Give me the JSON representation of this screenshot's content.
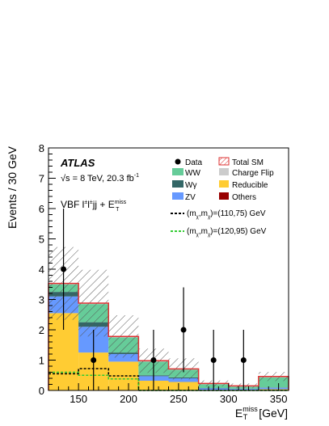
{
  "chart_data": {
    "type": "bar",
    "stacked": true,
    "xlabel_main": "E",
    "xlabel_sup": "miss",
    "xlabel_sub": "T",
    "xlabel_unit": "[GeV]",
    "ylabel": "Events / 30 GeV",
    "xlim": [
      120,
      360
    ],
    "ylim": [
      0,
      8
    ],
    "x_ticks": [
      150,
      200,
      250,
      300,
      350
    ],
    "y_ticks": [
      0,
      1,
      2,
      3,
      4,
      5,
      6,
      7,
      8
    ],
    "bins": [
      [
        120,
        150
      ],
      [
        150,
        180
      ],
      [
        180,
        210
      ],
      [
        210,
        240
      ],
      [
        240,
        270
      ],
      [
        270,
        300
      ],
      [
        300,
        330
      ],
      [
        330,
        360
      ]
    ],
    "series": [
      {
        "name": "Reducible",
        "color": "#ffcc33",
        "values": [
          2.55,
          1.25,
          0.95,
          0.32,
          0.28,
          0.02,
          0.02,
          0.04
        ]
      },
      {
        "name": "ZV",
        "color": "#6699ff",
        "values": [
          0.55,
          0.85,
          0.25,
          0.15,
          0.12,
          0.05,
          0.03,
          0.05
        ]
      },
      {
        "name": "Wγ",
        "color": "#336666",
        "values": [
          0.15,
          0.15,
          0.05,
          0.03,
          0.03,
          0.01,
          0.01,
          0.01
        ]
      },
      {
        "name": "WW",
        "color": "#66cc99",
        "values": [
          0.25,
          0.6,
          0.5,
          0.45,
          0.25,
          0.12,
          0.06,
          0.33
        ]
      },
      {
        "name": "Charge Flip",
        "color": "#cccccc",
        "values": [
          0.02,
          0.02,
          0.02,
          0.02,
          0.02,
          0.02,
          0.02,
          0.02
        ]
      },
      {
        "name": "Others",
        "color": "#990000",
        "values": [
          0.01,
          0.01,
          0.01,
          0.01,
          0.01,
          0.01,
          0.01,
          0.01
        ]
      }
    ],
    "total_sm": {
      "name": "Total SM",
      "color": "#dd3333",
      "values": [
        3.53,
        2.88,
        1.78,
        0.98,
        0.71,
        0.23,
        0.15,
        0.46
      ],
      "uncertainty": [
        1.2,
        1.1,
        0.7,
        0.4,
        0.35,
        0.1,
        0.08,
        0.15
      ]
    },
    "data": {
      "name": "Data",
      "x": [
        135,
        165,
        225,
        255,
        285,
        315
      ],
      "values": [
        4,
        1,
        1,
        2,
        1,
        1
      ],
      "err_low": [
        2,
        1,
        1,
        1.4,
        1,
        1
      ],
      "err_high": [
        2,
        1,
        1,
        1.4,
        1,
        1
      ]
    },
    "signals": [
      {
        "name": "(110,75) GeV",
        "color": "#000000",
        "values": [
          0.55,
          0.72,
          0.48,
          0.0,
          0.0,
          0.0,
          0.0,
          0.0
        ]
      },
      {
        "name": "(120,95) GeV",
        "color": "#33cc33",
        "values": [
          0.6,
          0.5,
          0.38,
          0.0,
          0.0,
          0.0,
          0.0,
          0.0
        ]
      }
    ],
    "legend_placement": "top-right"
  },
  "labels": {
    "atlas": "ATLAS",
    "energy_prefix": "√s = 8 TeV, 20.3 fb",
    "energy_sup": "-1",
    "channel": "VBF l",
    "channel_sup1": "±",
    "channel_mid": "l",
    "channel_sup2": "±",
    "channel_mid2": "jj + E",
    "channel_sup3": "miss",
    "channel_sub3": "T",
    "sig_prefix": "(m",
    "sig_sub1": "χ",
    "sig_comma": ",m",
    "sig_sub2": "χ",
    "sig_close": ")="
  }
}
